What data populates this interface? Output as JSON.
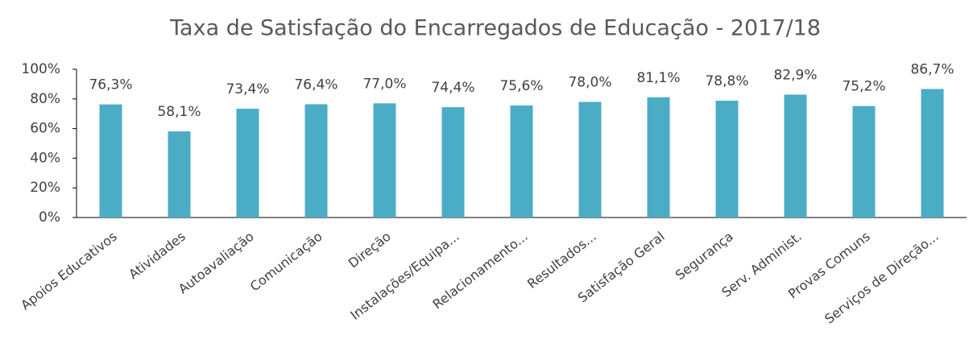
{
  "chart_data": {
    "type": "bar",
    "title": "Taxa de Satisfação do Encarregados de Educação - 2017/18",
    "categories": [
      "Apoios Educativos",
      "Atividades",
      "Autoavaliação",
      "Comunicação",
      "Direção",
      "Instalações/Equipa...",
      "Relacionamento...",
      "Resultados...",
      "Satisfação Geral",
      "Segurança",
      "Serv. Administ.",
      "Provas Comuns",
      "Serviços de Direção..."
    ],
    "values": [
      76.3,
      58.1,
      73.4,
      76.4,
      77.0,
      74.4,
      75.6,
      78.0,
      81.1,
      78.8,
      82.9,
      75.2,
      86.7
    ],
    "value_labels": [
      "76,3%",
      "58,1%",
      "73,4%",
      "76,4%",
      "77,0%",
      "74,4%",
      "75,6%",
      "78,0%",
      "81,1%",
      "78,8%",
      "82,9%",
      "75,2%",
      "86,7%"
    ],
    "color": "#4bacc6",
    "ylim": [
      0,
      100
    ],
    "yticks": [
      {
        "value": 0,
        "label": "0%"
      },
      {
        "value": 20,
        "label": "20%"
      },
      {
        "value": 40,
        "label": "40%"
      },
      {
        "value": 60,
        "label": "60%"
      },
      {
        "value": 80,
        "label": "80%"
      },
      {
        "value": 100,
        "label": "100%"
      }
    ],
    "grid": false
  }
}
